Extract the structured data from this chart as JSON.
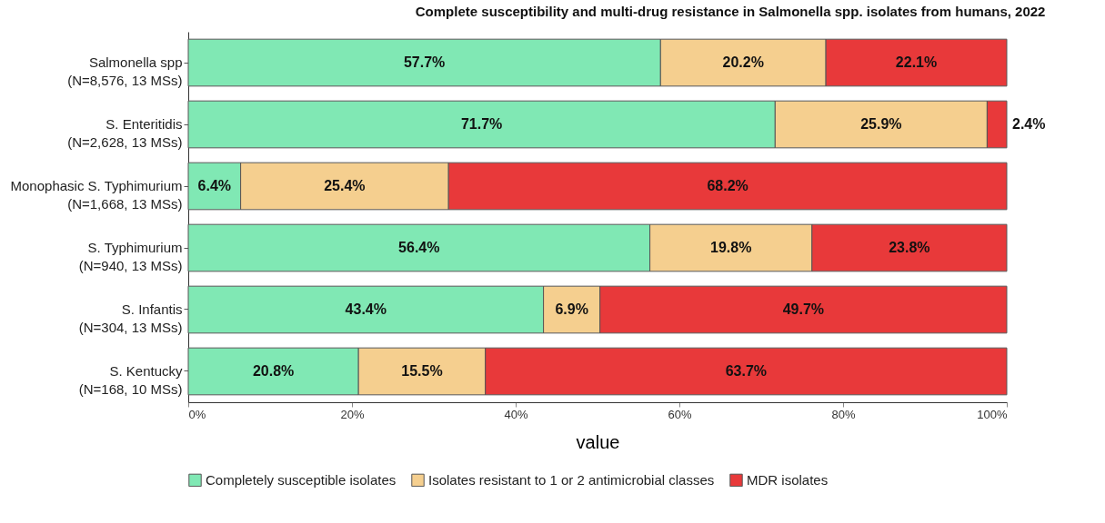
{
  "chart_data": {
    "type": "bar",
    "orientation": "horizontal",
    "stacked": true,
    "title": "Complete susceptibility and multi-drug resistance in Salmonella spp. isolates from humans, 2022",
    "xlabel": "value",
    "categories": [
      "Salmonella spp\n(N=8,576, 13 MSs)",
      "S. Enteritidis\n(N=2,628, 13 MSs)",
      "Monophasic S. Typhimurium\n(N=1,668, 13 MSs)",
      "S. Typhimurium\n(N=940, 13 MSs)",
      "S. Infantis\n(N=304, 13 MSs)",
      "S. Kentucky\n(N=168, 10 MSs)"
    ],
    "series": [
      {
        "name": "Completely susceptible isolates",
        "color": "#80e8b4",
        "values": [
          57.7,
          71.7,
          6.4,
          56.4,
          43.4,
          20.8
        ],
        "value_labels": [
          "57.7%",
          "71.7%",
          "6.4%",
          "56.4%",
          "43.4%",
          "20.8%"
        ]
      },
      {
        "name": "Isolates resistant to 1 or 2 antimicrobial classes",
        "color": "#f5cf8f",
        "values": [
          20.2,
          25.9,
          25.4,
          19.8,
          6.9,
          15.5
        ],
        "value_labels": [
          "20.2%",
          "25.9%",
          "25.4%",
          "19.8%",
          "6.9%",
          "15.5%"
        ]
      },
      {
        "name": "MDR isolates",
        "color": "#e8393a",
        "values": [
          22.1,
          2.4,
          68.2,
          23.8,
          49.7,
          63.7
        ],
        "value_labels": [
          "22.1%",
          "2.4%",
          "68.2%",
          "23.8%",
          "49.7%",
          "63.7%"
        ]
      }
    ],
    "xlim": [
      0,
      100
    ],
    "xticks": [
      {
        "value": 0,
        "label": "0%"
      },
      {
        "value": 20,
        "label": "20%"
      },
      {
        "value": 40,
        "label": "40%"
      },
      {
        "value": 60,
        "label": "60%"
      },
      {
        "value": 80,
        "label": "80%"
      },
      {
        "value": 100,
        "label": "100%"
      }
    ],
    "grid": false,
    "legend": "bottom"
  }
}
